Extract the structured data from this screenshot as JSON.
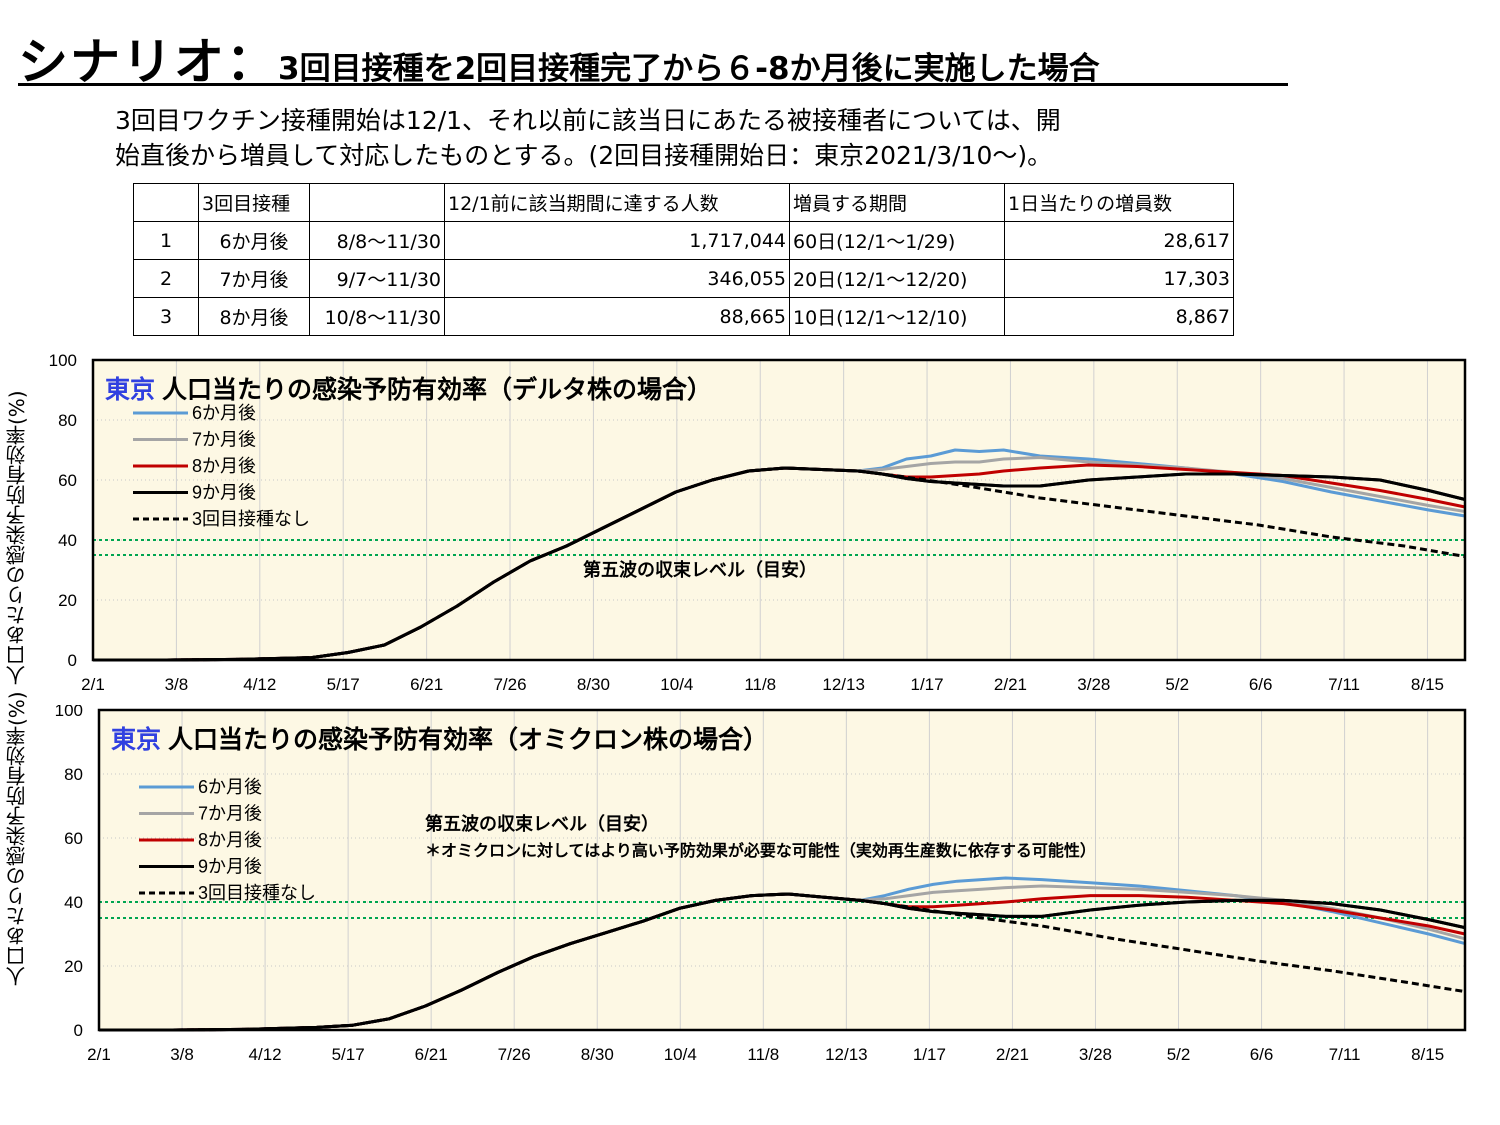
{
  "page": {
    "title_big": "シナリオ：",
    "title_small": "3回目接種を2回目接種完了から６-8か月後に実施した場合",
    "desc_line1": "3回目ワクチン接種開始は12/1、それ以前に該当日にあたる被接種者については、開",
    "desc_line2": "始直後から増員して対応したものとする。(2回目接種開始日：東京2021/3/10～)。",
    "y_axis_label": "人口あたりの感染予防有効率(%) 人口あたりの感染予防有効率(%)"
  },
  "table": {
    "header": [
      "",
      "3回目接種",
      "",
      "12/1前に該当期間に達する人数",
      "増員する期間",
      "1日当たりの増員数"
    ],
    "rows": [
      [
        "1",
        "6か月後",
        "8/8～11/30",
        "1,717,044",
        "60日(12/1～1/29)",
        "28,617"
      ],
      [
        "2",
        "7か月後",
        "9/7～11/30",
        "346,055",
        "20日(12/1～12/20)",
        "17,303"
      ],
      [
        "3",
        "8か月後",
        "10/8～11/30",
        "88,665",
        "10日(12/1～12/10)",
        "8,867"
      ]
    ]
  },
  "colors": {
    "s6": "#5b9bd5",
    "s7": "#a5a5a5",
    "s8": "#c00000",
    "s9": "#000000",
    "none": "#000000",
    "level": "#00a550",
    "plot_bg": "#fdf8e4",
    "title_accent": "#3040e0"
  },
  "chart_data": [
    {
      "type": "line",
      "title_prefix": "東京",
      "title": "人口当たりの感染予防有効率（デルタ株の場合）",
      "annotation": "第五波の収束レベル（目安）",
      "annotation_note": "",
      "x_ticks": [
        "2/1",
        "3/8",
        "4/12",
        "5/17",
        "6/21",
        "7/26",
        "8/30",
        "10/4",
        "11/8",
        "12/13",
        "1/17",
        "2/21",
        "3/28",
        "5/2",
        "6/6",
        "7/11",
        "8/15"
      ],
      "y_ticks": [
        "0",
        "20",
        "40",
        "60",
        "80",
        "100"
      ],
      "ylim": [
        0,
        100
      ],
      "x_range_days": [
        0,
        565
      ],
      "grid": true,
      "legend_position": "top-left",
      "reference_lines": [
        40,
        35
      ],
      "series": [
        {
          "name": "6か月後",
          "style": "solid",
          "color_key": "s6",
          "x": [
            0,
            30,
            60,
            90,
            105,
            120,
            135,
            150,
            165,
            180,
            195,
            210,
            225,
            240,
            255,
            270,
            285,
            300,
            315,
            325,
            335,
            345,
            355,
            365,
            375,
            390,
            410,
            430,
            450,
            470,
            490,
            510,
            530,
            550,
            565
          ],
          "y": [
            0,
            0,
            0.2,
            0.8,
            2.5,
            5,
            11,
            18,
            26,
            33,
            38,
            44,
            50,
            56,
            60,
            63,
            64,
            63.5,
            63,
            64,
            67,
            68,
            70,
            69.5,
            70,
            68,
            67,
            65.5,
            64,
            62,
            59.5,
            56,
            53,
            50,
            48
          ]
        },
        {
          "name": "7か月後",
          "style": "solid",
          "color_key": "s7",
          "x": [
            0,
            30,
            60,
            90,
            105,
            120,
            135,
            150,
            165,
            180,
            195,
            210,
            225,
            240,
            255,
            270,
            285,
            300,
            315,
            325,
            335,
            345,
            355,
            365,
            375,
            390,
            410,
            430,
            450,
            470,
            490,
            510,
            530,
            550,
            565
          ],
          "y": [
            0,
            0,
            0.2,
            0.8,
            2.5,
            5,
            11,
            18,
            26,
            33,
            38,
            44,
            50,
            56,
            60,
            63,
            64,
            63.5,
            63,
            63.5,
            64.5,
            65.5,
            66,
            66,
            67,
            67.5,
            66,
            65,
            64,
            62.5,
            60.5,
            57.5,
            54.5,
            51.5,
            49.5
          ]
        },
        {
          "name": "8か月後",
          "style": "solid",
          "color_key": "s8",
          "x": [
            0,
            30,
            60,
            90,
            105,
            120,
            135,
            150,
            165,
            180,
            195,
            210,
            225,
            240,
            255,
            270,
            285,
            300,
            315,
            325,
            335,
            345,
            355,
            365,
            375,
            390,
            410,
            430,
            450,
            470,
            490,
            510,
            530,
            550,
            565
          ],
          "y": [
            0,
            0,
            0.2,
            0.8,
            2.5,
            5,
            11,
            18,
            26,
            33,
            38,
            44,
            50,
            56,
            60,
            63,
            64,
            63.5,
            63,
            62,
            61,
            61,
            61.5,
            62,
            63,
            64,
            65,
            64.5,
            63.5,
            62.5,
            61.5,
            59,
            56.5,
            53.5,
            51
          ]
        },
        {
          "name": "9か月後",
          "style": "solid",
          "color_key": "s9",
          "x": [
            0,
            30,
            60,
            90,
            105,
            120,
            135,
            150,
            165,
            180,
            195,
            210,
            225,
            240,
            255,
            270,
            285,
            300,
            315,
            325,
            335,
            345,
            355,
            365,
            375,
            390,
            410,
            430,
            450,
            470,
            490,
            510,
            530,
            550,
            565
          ],
          "y": [
            0,
            0,
            0.2,
            0.8,
            2.5,
            5,
            11,
            18,
            26,
            33,
            38,
            44,
            50,
            56,
            60,
            63,
            64,
            63.5,
            63,
            62,
            60.5,
            59.5,
            59,
            58.5,
            58,
            58,
            60,
            61,
            62,
            62,
            61.5,
            61,
            60,
            56.5,
            53.5
          ]
        },
        {
          "name": "3回目接種なし",
          "style": "dashed",
          "color_key": "none",
          "x": [
            0,
            30,
            60,
            90,
            105,
            120,
            135,
            150,
            165,
            180,
            195,
            210,
            225,
            240,
            255,
            270,
            285,
            300,
            315,
            330,
            360,
            390,
            420,
            450,
            480,
            510,
            540,
            565
          ],
          "y": [
            0,
            0,
            0.2,
            0.8,
            2.5,
            5,
            11,
            18,
            26,
            33,
            38,
            44,
            50,
            56,
            60,
            63,
            64,
            63.5,
            63,
            61.5,
            58,
            54,
            51,
            48,
            45,
            41,
            38,
            34.5
          ]
        }
      ]
    },
    {
      "type": "line",
      "title_prefix": "東京",
      "title": "人口当たりの感染予防有効率（オミクロン株の場合）",
      "annotation": "第五波の収束レベル（目安）",
      "annotation_note": "＊オミクロンに対してはより高い予防効果が必要な可能性（実効再生産数に依存する可能性）",
      "x_ticks": [
        "2/1",
        "3/8",
        "4/12",
        "5/17",
        "6/21",
        "7/26",
        "8/30",
        "10/4",
        "11/8",
        "12/13",
        "1/17",
        "2/21",
        "3/28",
        "5/2",
        "6/6",
        "7/11",
        "8/15"
      ],
      "y_ticks": [
        "0",
        "20",
        "40",
        "60",
        "80",
        "100"
      ],
      "ylim": [
        0,
        100
      ],
      "x_range_days": [
        0,
        565
      ],
      "grid": true,
      "legend_position": "top-left",
      "reference_lines": [
        40,
        35
      ],
      "series": [
        {
          "name": "6か月後",
          "style": "solid",
          "color_key": "s6",
          "x": [
            0,
            30,
            60,
            90,
            105,
            120,
            135,
            150,
            165,
            180,
            195,
            210,
            225,
            240,
            255,
            270,
            285,
            300,
            315,
            325,
            335,
            345,
            355,
            365,
            375,
            390,
            410,
            430,
            450,
            470,
            490,
            510,
            530,
            550,
            565
          ],
          "y": [
            0,
            0,
            0.2,
            0.8,
            1.5,
            3.5,
            7.5,
            12.5,
            18,
            23,
            27,
            30.5,
            34,
            38,
            40.5,
            42,
            42.5,
            41.5,
            40.5,
            42,
            44,
            45.5,
            46.5,
            47,
            47.5,
            47,
            46,
            45,
            43.5,
            42,
            40,
            37,
            33.5,
            30,
            27
          ]
        },
        {
          "name": "7か月後",
          "style": "solid",
          "color_key": "s7",
          "x": [
            0,
            30,
            60,
            90,
            105,
            120,
            135,
            150,
            165,
            180,
            195,
            210,
            225,
            240,
            255,
            270,
            285,
            300,
            315,
            325,
            335,
            345,
            355,
            365,
            375,
            390,
            410,
            430,
            450,
            470,
            490,
            510,
            530,
            550,
            565
          ],
          "y": [
            0,
            0,
            0.2,
            0.8,
            1.5,
            3.5,
            7.5,
            12.5,
            18,
            23,
            27,
            30.5,
            34,
            38,
            40.5,
            42,
            42.5,
            41.5,
            40.5,
            41,
            42,
            43,
            43.5,
            44,
            44.5,
            45,
            44.5,
            44,
            43,
            42,
            40.5,
            38,
            35,
            31.5,
            28.5
          ]
        },
        {
          "name": "8か月後",
          "style": "solid",
          "color_key": "s8",
          "x": [
            0,
            30,
            60,
            90,
            105,
            120,
            135,
            150,
            165,
            180,
            195,
            210,
            225,
            240,
            255,
            270,
            285,
            300,
            315,
            325,
            335,
            345,
            355,
            365,
            375,
            390,
            410,
            430,
            450,
            470,
            490,
            510,
            530,
            550,
            565
          ],
          "y": [
            0,
            0,
            0.2,
            0.8,
            1.5,
            3.5,
            7.5,
            12.5,
            18,
            23,
            27,
            30.5,
            34,
            38,
            40.5,
            42,
            42.5,
            41.5,
            40.5,
            39.5,
            38.5,
            38.5,
            39,
            39.5,
            40,
            41,
            42,
            42,
            41.5,
            40.5,
            39.5,
            37.5,
            35,
            32.5,
            30
          ]
        },
        {
          "name": "9か月後",
          "style": "solid",
          "color_key": "s9",
          "x": [
            0,
            30,
            60,
            90,
            105,
            120,
            135,
            150,
            165,
            180,
            195,
            210,
            225,
            240,
            255,
            270,
            285,
            300,
            315,
            325,
            335,
            345,
            355,
            365,
            375,
            390,
            410,
            430,
            450,
            470,
            490,
            510,
            530,
            550,
            565
          ],
          "y": [
            0,
            0,
            0.2,
            0.8,
            1.5,
            3.5,
            7.5,
            12.5,
            18,
            23,
            27,
            30.5,
            34,
            38,
            40.5,
            42,
            42.5,
            41.5,
            40.5,
            39.5,
            38,
            37,
            36.5,
            36,
            35.5,
            35.5,
            37.5,
            39,
            40,
            40.5,
            40.5,
            39.5,
            37.5,
            34.5,
            32
          ]
        },
        {
          "name": "3回目接種なし",
          "style": "dashed",
          "color_key": "none",
          "x": [
            0,
            30,
            60,
            90,
            105,
            120,
            135,
            150,
            165,
            180,
            195,
            210,
            225,
            240,
            255,
            270,
            285,
            300,
            315,
            330,
            360,
            390,
            420,
            450,
            480,
            510,
            540,
            565
          ],
          "y": [
            0,
            0,
            0.2,
            0.8,
            1.5,
            3.5,
            7.5,
            12.5,
            18,
            23,
            27,
            30.5,
            34,
            38,
            40.5,
            42,
            42.5,
            41.5,
            40.5,
            39,
            35.5,
            32.5,
            28.5,
            25,
            21.5,
            18.5,
            15,
            12
          ]
        }
      ]
    }
  ]
}
